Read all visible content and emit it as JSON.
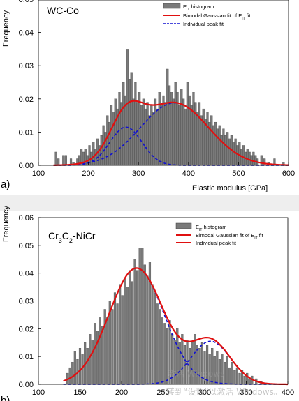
{
  "chart_data": [
    {
      "type": "bar",
      "panel_label": "a)",
      "title": "WC-Co",
      "xlabel": "Elastic modulus [GPa]",
      "ylabel": "Frequency",
      "xlim": [
        100,
        600
      ],
      "ylim": [
        0,
        0.05
      ],
      "xticks": [
        "100",
        "200",
        "300",
        "400",
        "500",
        "600"
      ],
      "yticks": [
        "0.00",
        "0.01",
        "0.02",
        "0.03",
        "0.04",
        "0.05"
      ],
      "legend": {
        "placement": "top-right",
        "entries": [
          {
            "label": "E_IT histogram",
            "kind": "bar",
            "color": "#707070"
          },
          {
            "label": "Bimodal Gaussian fit of E_IT fit",
            "kind": "line",
            "color": "#e01010"
          },
          {
            "label": "Individual peak fit",
            "kind": "dash",
            "color": "#1010d0"
          }
        ]
      },
      "bin_width": 4,
      "bins": [
        [
          135,
          0.004
        ],
        [
          140,
          0.002
        ],
        [
          150,
          0.003
        ],
        [
          155,
          0.003
        ],
        [
          165,
          0.002
        ],
        [
          170,
          0.001
        ],
        [
          178,
          0.002
        ],
        [
          182,
          0.003
        ],
        [
          186,
          0.005
        ],
        [
          190,
          0.004
        ],
        [
          194,
          0.005
        ],
        [
          198,
          0.003
        ],
        [
          202,
          0.006
        ],
        [
          206,
          0.004
        ],
        [
          210,
          0.007
        ],
        [
          214,
          0.005
        ],
        [
          218,
          0.008
        ],
        [
          222,
          0.006
        ],
        [
          226,
          0.009
        ],
        [
          230,
          0.012
        ],
        [
          234,
          0.01
        ],
        [
          238,
          0.015
        ],
        [
          242,
          0.013
        ],
        [
          246,
          0.018
        ],
        [
          250,
          0.016
        ],
        [
          254,
          0.02
        ],
        [
          258,
          0.017
        ],
        [
          262,
          0.022
        ],
        [
          266,
          0.019
        ],
        [
          270,
          0.025
        ],
        [
          274,
          0.021
        ],
        [
          278,
          0.035
        ],
        [
          282,
          0.026
        ],
        [
          286,
          0.028
        ],
        [
          290,
          0.02
        ],
        [
          294,
          0.025
        ],
        [
          298,
          0.019
        ],
        [
          302,
          0.022
        ],
        [
          306,
          0.018
        ],
        [
          310,
          0.02
        ],
        [
          314,
          0.017
        ],
        [
          318,
          0.019
        ],
        [
          322,
          0.015
        ],
        [
          326,
          0.018
        ],
        [
          330,
          0.016
        ],
        [
          334,
          0.02
        ],
        [
          338,
          0.017
        ],
        [
          342,
          0.022
        ],
        [
          346,
          0.018
        ],
        [
          350,
          0.021
        ],
        [
          354,
          0.019
        ],
        [
          358,
          0.029
        ],
        [
          362,
          0.024
        ],
        [
          366,
          0.022
        ],
        [
          370,
          0.02
        ],
        [
          374,
          0.025
        ],
        [
          378,
          0.022
        ],
        [
          382,
          0.018
        ],
        [
          386,
          0.023
        ],
        [
          390,
          0.02
        ],
        [
          394,
          0.017
        ],
        [
          398,
          0.025
        ],
        [
          402,
          0.021
        ],
        [
          406,
          0.018
        ],
        [
          410,
          0.022
        ],
        [
          414,
          0.019
        ],
        [
          418,
          0.016
        ],
        [
          422,
          0.019
        ],
        [
          426,
          0.015
        ],
        [
          430,
          0.017
        ],
        [
          434,
          0.014
        ],
        [
          438,
          0.016
        ],
        [
          442,
          0.013
        ],
        [
          446,
          0.015
        ],
        [
          450,
          0.012
        ],
        [
          454,
          0.013
        ],
        [
          458,
          0.011
        ],
        [
          462,
          0.012
        ],
        [
          466,
          0.009
        ],
        [
          470,
          0.011
        ],
        [
          474,
          0.009
        ],
        [
          478,
          0.01
        ],
        [
          482,
          0.008
        ],
        [
          486,
          0.009
        ],
        [
          490,
          0.007
        ],
        [
          494,
          0.008
        ],
        [
          498,
          0.006
        ],
        [
          502,
          0.007
        ],
        [
          506,
          0.005
        ],
        [
          510,
          0.006
        ],
        [
          514,
          0.004
        ],
        [
          518,
          0.005
        ],
        [
          522,
          0.004
        ],
        [
          526,
          0.003
        ],
        [
          530,
          0.004
        ],
        [
          534,
          0.003
        ],
        [
          538,
          0.002
        ],
        [
          546,
          0.003
        ],
        [
          552,
          0.002
        ],
        [
          560,
          0.001
        ],
        [
          572,
          0.002
        ],
        [
          590,
          0.001
        ]
      ],
      "fit": {
        "peaks": [
          {
            "mu": 275,
            "sigma": 32,
            "A": 0.0115
          },
          {
            "mu": 372,
            "sigma": 68,
            "A": 0.0188
          }
        ]
      }
    },
    {
      "type": "bar",
      "panel_label": "b)",
      "title": "Cr3C2-NiCr",
      "title_parts": [
        "Cr",
        "3",
        "C",
        "2",
        "-NiCr"
      ],
      "xlabel": "",
      "ylabel": "Frequency",
      "xlim": [
        100,
        400
      ],
      "ylim": [
        0,
        0.06
      ],
      "xticks": [
        "100",
        "150",
        "200",
        "250",
        "300",
        "350",
        "400"
      ],
      "yticks": [
        "0.00",
        "0.01",
        "0.02",
        "0.03",
        "0.04",
        "0.05",
        "0.06"
      ],
      "legend": {
        "placement": "top-right",
        "entries": [
          {
            "label": "E_IT histogram",
            "kind": "bar",
            "color": "#707070"
          },
          {
            "label": "Bimodal Gaussian fit of E_IT fit",
            "kind": "line",
            "color": "#e01010"
          },
          {
            "label": "Individual peak fit",
            "kind": "line",
            "color": "#e01010"
          }
        ]
      },
      "bin_width": 2.4,
      "bins": [
        [
          135,
          0.004
        ],
        [
          138,
          0.006
        ],
        [
          141,
          0.008
        ],
        [
          144,
          0.012
        ],
        [
          147,
          0.009
        ],
        [
          150,
          0.013
        ],
        [
          153,
          0.011
        ],
        [
          156,
          0.015
        ],
        [
          159,
          0.013
        ],
        [
          162,
          0.018
        ],
        [
          165,
          0.016
        ],
        [
          168,
          0.022
        ],
        [
          171,
          0.019
        ],
        [
          174,
          0.024
        ],
        [
          177,
          0.021
        ],
        [
          180,
          0.027
        ],
        [
          183,
          0.024
        ],
        [
          186,
          0.03
        ],
        [
          189,
          0.027
        ],
        [
          192,
          0.033
        ],
        [
          195,
          0.029
        ],
        [
          198,
          0.036
        ],
        [
          201,
          0.032
        ],
        [
          204,
          0.038
        ],
        [
          207,
          0.035
        ],
        [
          210,
          0.041
        ],
        [
          213,
          0.037
        ],
        [
          216,
          0.045
        ],
        [
          219,
          0.041
        ],
        [
          222,
          0.049
        ],
        [
          225,
          0.049
        ],
        [
          228,
          0.043
        ],
        [
          231,
          0.039
        ],
        [
          234,
          0.044
        ],
        [
          237,
          0.036
        ],
        [
          240,
          0.033
        ],
        [
          243,
          0.029
        ],
        [
          246,
          0.027
        ],
        [
          249,
          0.024
        ],
        [
          252,
          0.022
        ],
        [
          255,
          0.02
        ],
        [
          258,
          0.023
        ],
        [
          261,
          0.018
        ],
        [
          264,
          0.016
        ],
        [
          267,
          0.02
        ],
        [
          270,
          0.015
        ],
        [
          273,
          0.018
        ],
        [
          276,
          0.014
        ],
        [
          279,
          0.016
        ],
        [
          282,
          0.013
        ],
        [
          285,
          0.015
        ],
        [
          288,
          0.018
        ],
        [
          291,
          0.014
        ],
        [
          294,
          0.013
        ],
        [
          297,
          0.015
        ],
        [
          300,
          0.012
        ],
        [
          303,
          0.014
        ],
        [
          306,
          0.011
        ],
        [
          309,
          0.013
        ],
        [
          312,
          0.01
        ],
        [
          315,
          0.012
        ],
        [
          318,
          0.009
        ],
        [
          321,
          0.011
        ],
        [
          324,
          0.008
        ],
        [
          327,
          0.01
        ],
        [
          330,
          0.006
        ],
        [
          333,
          0.008
        ],
        [
          336,
          0.005
        ],
        [
          339,
          0.006
        ],
        [
          342,
          0.004
        ],
        [
          345,
          0.005
        ],
        [
          348,
          0.003
        ],
        [
          351,
          0.004
        ],
        [
          354,
          0.002
        ],
        [
          357,
          0.003
        ],
        [
          362,
          0.002
        ],
        [
          368,
          0.001
        ]
      ],
      "fit": {
        "peaks": [
          {
            "mu": 218,
            "sigma": 33,
            "A": 0.0418
          },
          {
            "mu": 307,
            "sigma": 24,
            "A": 0.0155
          }
        ]
      }
    }
  ],
  "legend_text": {
    "hist_main": "E",
    "hist_sub": "IT",
    "hist_rest": " histogram",
    "fit_main": "Bimodal Gaussian fit of E",
    "fit_sub": "IT",
    "fit_rest": " fit",
    "peak": "Individual peak fit"
  },
  "watermark": [
    "激活 Windows",
    "转到“设置”以激活 Windows。"
  ],
  "colors": {
    "bar": "#7a7a7a",
    "bar_edge": "#3a3a3a",
    "fit": "#e01010",
    "peak": "#1010d0",
    "band": "#eeeeee"
  }
}
